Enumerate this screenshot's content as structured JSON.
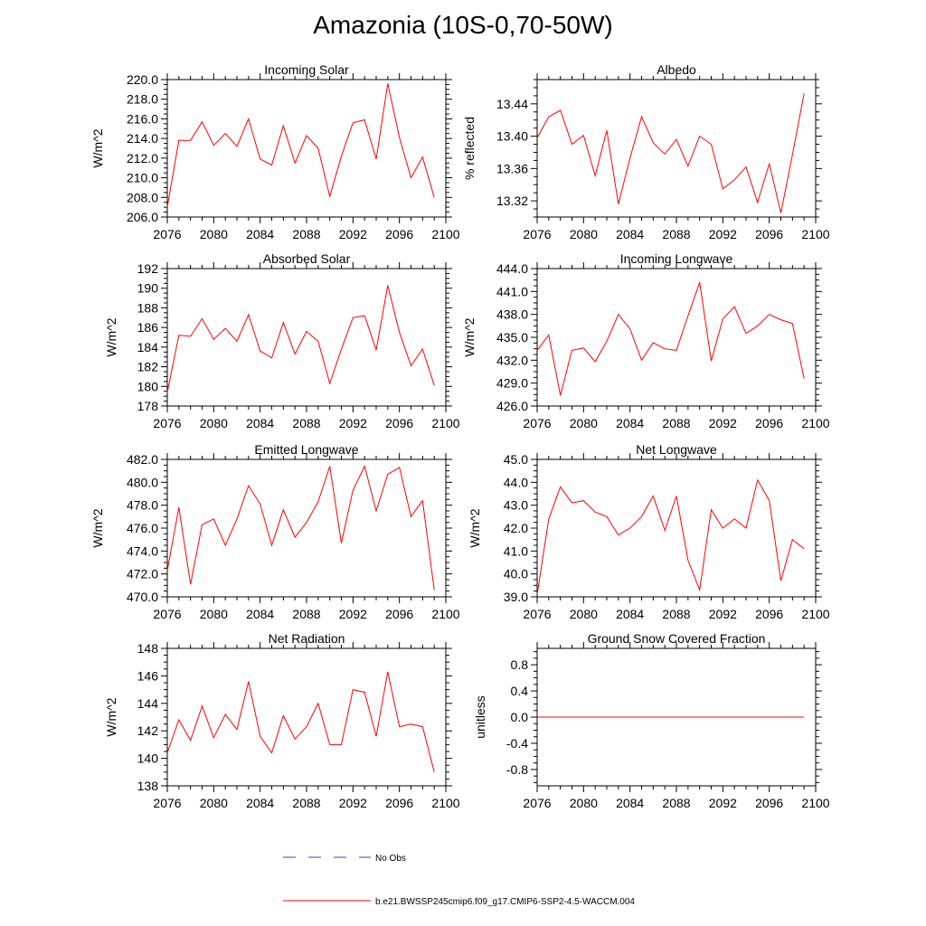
{
  "page": {
    "title": "Amazonia (10S-0,70-50W)"
  },
  "legend": {
    "obs_label": "No Obs",
    "model_label": "b.e21.BWSSP245cmip6.f09_g17.CMIP6-SSP2-4.5-WACCM.004",
    "obs_color": "#3b3bd6",
    "model_color": "#ff0000"
  },
  "chart_data": [
    {
      "type": "line",
      "title": "Incoming Solar",
      "ylabel": "W/m^2",
      "xlabel": "",
      "xlim": [
        2076,
        2100
      ],
      "ylim": [
        206,
        220
      ],
      "yticks": [
        "206.0",
        "208.0",
        "210.0",
        "212.0",
        "214.0",
        "216.0",
        "218.0",
        "220.0"
      ],
      "ytick_values": [
        206,
        208,
        210,
        212,
        214,
        216,
        218,
        220
      ],
      "xticks": [
        "2076",
        "2080",
        "2084",
        "2088",
        "2092",
        "2096",
        "2100"
      ],
      "series": [
        {
          "name": "b.e21.BWSSP245cmip6.f09_g17.CMIP6-SSP2-4.5-WACCM.004",
          "x": [
            2076,
            2077,
            2078,
            2079,
            2080,
            2081,
            2082,
            2083,
            2084,
            2085,
            2086,
            2087,
            2088,
            2089,
            2090,
            2091,
            2092,
            2093,
            2094,
            2095,
            2096,
            2097,
            2098,
            2099
          ],
          "values": [
            207.0,
            213.8,
            213.8,
            215.7,
            213.3,
            214.5,
            213.2,
            216.0,
            211.9,
            211.3,
            215.3,
            211.5,
            214.3,
            213.0,
            208.1,
            212.2,
            215.6,
            215.9,
            211.9,
            219.6,
            214.1,
            210.0,
            212.1,
            208.0
          ]
        }
      ]
    },
    {
      "type": "line",
      "title": "Albedo",
      "ylabel": "% reflected",
      "xlabel": "",
      "xlim": [
        2076,
        2100
      ],
      "ylim": [
        13.3,
        13.47
      ],
      "yticks": [
        "13.32",
        "13.36",
        "13.40",
        "13.44"
      ],
      "ytick_values": [
        13.32,
        13.36,
        13.4,
        13.44
      ],
      "xticks": [
        "2076",
        "2080",
        "2084",
        "2088",
        "2092",
        "2096",
        "2100"
      ],
      "series": [
        {
          "name": "b.e21.BWSSP245cmip6.f09_g17.CMIP6-SSP2-4.5-WACCM.004",
          "x": [
            2076,
            2077,
            2078,
            2079,
            2080,
            2081,
            2082,
            2083,
            2084,
            2085,
            2086,
            2087,
            2088,
            2089,
            2090,
            2091,
            2092,
            2093,
            2094,
            2095,
            2096,
            2097,
            2098,
            2099
          ],
          "values": [
            13.398,
            13.424,
            13.432,
            13.39,
            13.401,
            13.351,
            13.407,
            13.316,
            13.373,
            13.424,
            13.392,
            13.378,
            13.396,
            13.363,
            13.4,
            13.39,
            13.335,
            13.346,
            13.362,
            13.318,
            13.366,
            13.305,
            13.377,
            13.453
          ]
        }
      ]
    },
    {
      "type": "line",
      "title": "Absorbed Solar",
      "ylabel": "W/m^2",
      "xlabel": "",
      "xlim": [
        2076,
        2100
      ],
      "ylim": [
        178,
        192
      ],
      "yticks": [
        "178",
        "180",
        "182",
        "184",
        "186",
        "188",
        "190",
        "192"
      ],
      "ytick_values": [
        178,
        180,
        182,
        184,
        186,
        188,
        190,
        192
      ],
      "xticks": [
        "2076",
        "2080",
        "2084",
        "2088",
        "2092",
        "2096",
        "2100"
      ],
      "series": [
        {
          "name": "b.e21.BWSSP245cmip6.f09_g17.CMIP6-SSP2-4.5-WACCM.004",
          "x": [
            2076,
            2077,
            2078,
            2079,
            2080,
            2081,
            2082,
            2083,
            2084,
            2085,
            2086,
            2087,
            2088,
            2089,
            2090,
            2091,
            2092,
            2093,
            2094,
            2095,
            2096,
            2097,
            2098,
            2099
          ],
          "values": [
            179.4,
            185.2,
            185.1,
            186.9,
            184.8,
            185.9,
            184.6,
            187.3,
            183.6,
            182.9,
            186.5,
            183.3,
            185.6,
            184.6,
            180.3,
            183.8,
            187.0,
            187.2,
            183.7,
            190.3,
            185.5,
            182.1,
            183.8,
            180.1
          ]
        }
      ]
    },
    {
      "type": "line",
      "title": "Incoming Longwave",
      "ylabel": "W/m^2",
      "xlabel": "",
      "xlim": [
        2076,
        2100
      ],
      "ylim": [
        426,
        444
      ],
      "yticks": [
        "426.0",
        "429.0",
        "432.0",
        "435.0",
        "438.0",
        "441.0",
        "444.0"
      ],
      "ytick_values": [
        426,
        429,
        432,
        435,
        438,
        441,
        444
      ],
      "xticks": [
        "2076",
        "2080",
        "2084",
        "2088",
        "2092",
        "2096",
        "2100"
      ],
      "series": [
        {
          "name": "b.e21.BWSSP245cmip6.f09_g17.CMIP6-SSP2-4.5-WACCM.004",
          "x": [
            2076,
            2077,
            2078,
            2079,
            2080,
            2081,
            2082,
            2083,
            2084,
            2085,
            2086,
            2087,
            2088,
            2089,
            2090,
            2091,
            2092,
            2093,
            2094,
            2095,
            2096,
            2097,
            2098,
            2099
          ],
          "values": [
            433.3,
            435.3,
            427.4,
            433.3,
            433.6,
            431.8,
            434.5,
            438.0,
            436.1,
            432.0,
            434.3,
            433.5,
            433.3,
            437.8,
            442.2,
            431.9,
            437.4,
            439.0,
            435.5,
            436.5,
            438.0,
            437.3,
            436.8,
            429.6
          ]
        }
      ]
    },
    {
      "type": "line",
      "title": "Emitted Longwave",
      "ylabel": "W/m^2",
      "xlabel": "",
      "xlim": [
        2076,
        2100
      ],
      "ylim": [
        470,
        482
      ],
      "yticks": [
        "470.0",
        "472.0",
        "474.0",
        "476.0",
        "478.0",
        "480.0",
        "482.0"
      ],
      "ytick_values": [
        470,
        472,
        474,
        476,
        478,
        480,
        482
      ],
      "xticks": [
        "2076",
        "2080",
        "2084",
        "2088",
        "2092",
        "2096",
        "2100"
      ],
      "series": [
        {
          "name": "b.e21.BWSSP245cmip6.f09_g17.CMIP6-SSP2-4.5-WACCM.004",
          "x": [
            2076,
            2077,
            2078,
            2079,
            2080,
            2081,
            2082,
            2083,
            2084,
            2085,
            2086,
            2087,
            2088,
            2089,
            2090,
            2091,
            2092,
            2093,
            2094,
            2095,
            2096,
            2097,
            2098,
            2099
          ],
          "values": [
            472.3,
            477.8,
            471.1,
            476.3,
            476.8,
            474.5,
            476.8,
            479.7,
            478.1,
            474.5,
            477.6,
            475.2,
            476.5,
            478.3,
            481.4,
            474.7,
            479.3,
            481.4,
            477.5,
            480.7,
            481.3,
            477.0,
            478.4,
            470.6
          ]
        }
      ]
    },
    {
      "type": "line",
      "title": "Net Longwave",
      "ylabel": "W/m^2",
      "xlabel": "",
      "xlim": [
        2076,
        2100
      ],
      "ylim": [
        39,
        45
      ],
      "yticks": [
        "39.0",
        "40.0",
        "41.0",
        "42.0",
        "43.0",
        "44.0",
        "45.0"
      ],
      "ytick_values": [
        39,
        40,
        41,
        42,
        43,
        44,
        45
      ],
      "xticks": [
        "2076",
        "2080",
        "2084",
        "2088",
        "2092",
        "2096",
        "2100"
      ],
      "series": [
        {
          "name": "b.e21.BWSSP245cmip6.f09_g17.CMIP6-SSP2-4.5-WACCM.004",
          "x": [
            2076,
            2077,
            2078,
            2079,
            2080,
            2081,
            2082,
            2083,
            2084,
            2085,
            2086,
            2087,
            2088,
            2089,
            2090,
            2091,
            2092,
            2093,
            2094,
            2095,
            2096,
            2097,
            2098,
            2099
          ],
          "values": [
            39.1,
            42.4,
            43.8,
            43.1,
            43.2,
            42.7,
            42.5,
            41.7,
            42.0,
            42.5,
            43.4,
            41.9,
            43.4,
            40.6,
            39.3,
            42.8,
            42.0,
            42.4,
            42.0,
            44.1,
            43.2,
            39.7,
            41.5,
            41.1
          ]
        }
      ]
    },
    {
      "type": "line",
      "title": "Net Radiation",
      "ylabel": "W/m^2",
      "xlabel": "",
      "xlim": [
        2076,
        2100
      ],
      "ylim": [
        138,
        148
      ],
      "yticks": [
        "138",
        "140",
        "142",
        "144",
        "146",
        "148"
      ],
      "ytick_values": [
        138,
        140,
        142,
        144,
        146,
        148
      ],
      "xticks": [
        "2076",
        "2080",
        "2084",
        "2088",
        "2092",
        "2096",
        "2100"
      ],
      "series": [
        {
          "name": "b.e21.BWSSP245cmip6.f09_g17.CMIP6-SSP2-4.5-WACCM.004",
          "x": [
            2076,
            2077,
            2078,
            2079,
            2080,
            2081,
            2082,
            2083,
            2084,
            2085,
            2086,
            2087,
            2088,
            2089,
            2090,
            2091,
            2092,
            2093,
            2094,
            2095,
            2096,
            2097,
            2098,
            2099
          ],
          "values": [
            140.4,
            142.8,
            141.3,
            143.8,
            141.5,
            143.2,
            142.1,
            145.6,
            141.6,
            140.4,
            143.1,
            141.4,
            142.3,
            144.0,
            141.0,
            141.0,
            145.0,
            144.8,
            141.6,
            146.3,
            142.3,
            142.5,
            142.3,
            139.0
          ]
        }
      ]
    },
    {
      "type": "line",
      "title": "Ground Snow Covered Fraction",
      "ylabel": "unitless",
      "xlabel": "",
      "xlim": [
        2076,
        2100
      ],
      "ylim": [
        -1.05,
        1.05
      ],
      "yticks": [
        "-0.8",
        "-0.4",
        "0.0",
        "0.4",
        "0.8"
      ],
      "ytick_values": [
        -0.8,
        -0.4,
        0,
        0.4,
        0.8
      ],
      "xticks": [
        "2076",
        "2080",
        "2084",
        "2088",
        "2092",
        "2096",
        "2100"
      ],
      "series": [
        {
          "name": "b.e21.BWSSP245cmip6.f09_g17.CMIP6-SSP2-4.5-WACCM.004",
          "x": [
            2076,
            2077,
            2078,
            2079,
            2080,
            2081,
            2082,
            2083,
            2084,
            2085,
            2086,
            2087,
            2088,
            2089,
            2090,
            2091,
            2092,
            2093,
            2094,
            2095,
            2096,
            2097,
            2098,
            2099
          ],
          "values": [
            0,
            0,
            0,
            0,
            0,
            0,
            0,
            0,
            0,
            0,
            0,
            0,
            0,
            0,
            0,
            0,
            0,
            0,
            0,
            0,
            0,
            0,
            0,
            0
          ]
        }
      ]
    }
  ]
}
